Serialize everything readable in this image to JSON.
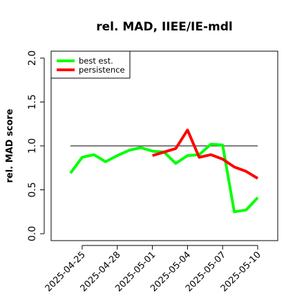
{
  "chart_data": {
    "type": "line",
    "title": "rel. MAD, IIEE/IE-mdl",
    "xlabel": "",
    "ylabel": "rel. MAD score",
    "ylim": [
      0,
      2
    ],
    "y_ticks": [
      "0.0",
      "0.5",
      "1.0",
      "1.5",
      "2.0"
    ],
    "x_start": "2025-04-24",
    "x_tick_labels": [
      "2025-04-25",
      "2025-04-28",
      "2025-05-01",
      "2025-05-04",
      "2025-05-07",
      "2025-05-10"
    ],
    "x_tick_dates": [
      "2025-04-25",
      "2025-04-28",
      "2025-05-01",
      "2025-05-04",
      "2025-05-07",
      "2025-05-10"
    ],
    "reference_line": {
      "y": 1.0,
      "color": "#555555"
    },
    "legend": {
      "position": "top-left"
    },
    "series": [
      {
        "name": "best est.",
        "color": "#00ff00",
        "x": [
          "2025-04-24",
          "2025-04-25",
          "2025-04-26",
          "2025-04-27",
          "2025-04-28",
          "2025-04-29",
          "2025-04-30",
          "2025-05-01",
          "2025-05-02",
          "2025-05-03",
          "2025-05-04",
          "2025-05-05",
          "2025-05-06",
          "2025-05-07",
          "2025-05-08",
          "2025-05-09",
          "2025-05-10"
        ],
        "values": [
          0.69,
          0.87,
          0.9,
          0.82,
          0.89,
          0.95,
          0.98,
          0.94,
          0.93,
          0.8,
          0.89,
          0.9,
          1.02,
          1.01,
          0.25,
          0.27,
          0.41
        ]
      },
      {
        "name": "persistence",
        "color": "#ff0000",
        "x": [
          "2025-05-01",
          "2025-05-02",
          "2025-05-03",
          "2025-05-04",
          "2025-05-05",
          "2025-05-06",
          "2025-05-07",
          "2025-05-08",
          "2025-05-09",
          "2025-05-10"
        ],
        "values": [
          0.89,
          0.93,
          0.97,
          1.18,
          0.87,
          0.9,
          0.85,
          0.76,
          0.71,
          0.63
        ]
      }
    ]
  }
}
